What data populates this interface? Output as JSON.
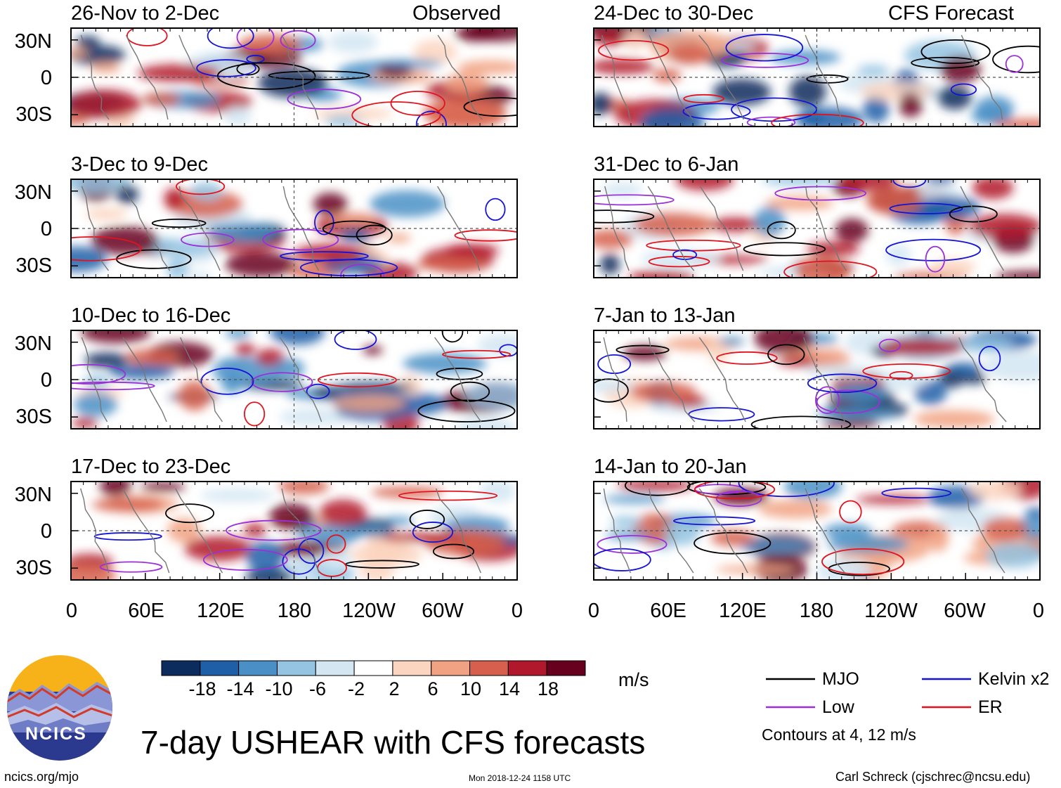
{
  "chart_data": {
    "type": "heatmap",
    "title": "7-day USHEAR with CFS forecasts",
    "columns": {
      "left": "Observed",
      "right": "CFS Forecast"
    },
    "panels": [
      {
        "period": "26-Nov to 2-Dec",
        "column": "left",
        "tag": "Observed"
      },
      {
        "period": "3-Dec to 9-Dec",
        "column": "left",
        "tag": ""
      },
      {
        "period": "10-Dec to 16-Dec",
        "column": "left",
        "tag": ""
      },
      {
        "period": "17-Dec to 23-Dec",
        "column": "left",
        "tag": ""
      },
      {
        "period": "24-Dec to 30-Dec",
        "column": "right",
        "tag": "CFS Forecast"
      },
      {
        "period": "31-Dec to 6-Jan",
        "column": "right",
        "tag": ""
      },
      {
        "period": "7-Jan to 13-Jan",
        "column": "right",
        "tag": ""
      },
      {
        "period": "14-Jan to 20-Jan",
        "column": "right",
        "tag": ""
      }
    ],
    "y_ticks": [
      "30N",
      "0",
      "30S"
    ],
    "ylim": [
      -40,
      40
    ],
    "x_ticks": [
      "0",
      "60E",
      "120E",
      "180",
      "120W",
      "60W",
      "0"
    ],
    "xlim": [
      0,
      360
    ],
    "colorbar": {
      "unit": "m/s",
      "labels": [
        "-18",
        "-14",
        "-10",
        "-6",
        "-2",
        "2",
        "6",
        "10",
        "14",
        "18"
      ],
      "colors": [
        "#0b2c5c",
        "#1f5fa8",
        "#4a90c6",
        "#95c4e2",
        "#d4e6f2",
        "#ffffff",
        "#fcd5c0",
        "#f1a282",
        "#d6604d",
        "#b2182b",
        "#67001f"
      ]
    },
    "legend": [
      {
        "label": "MJO",
        "color": "#000000"
      },
      {
        "label": "Kelvin x2",
        "color": "#1414d4"
      },
      {
        "label": "Low",
        "color": "#9b30d9"
      },
      {
        "label": "ER",
        "color": "#e0141e"
      }
    ],
    "contour_note": "Contours at 4, 12 m/s"
  },
  "logo": {
    "text": "NCICS"
  },
  "footer": {
    "url": "ncics.org/mjo",
    "timestamp": "Mon 2018-12-24 1158 UTC",
    "credit": "Carl Schreck (cjschrec@ncsu.edu)"
  }
}
